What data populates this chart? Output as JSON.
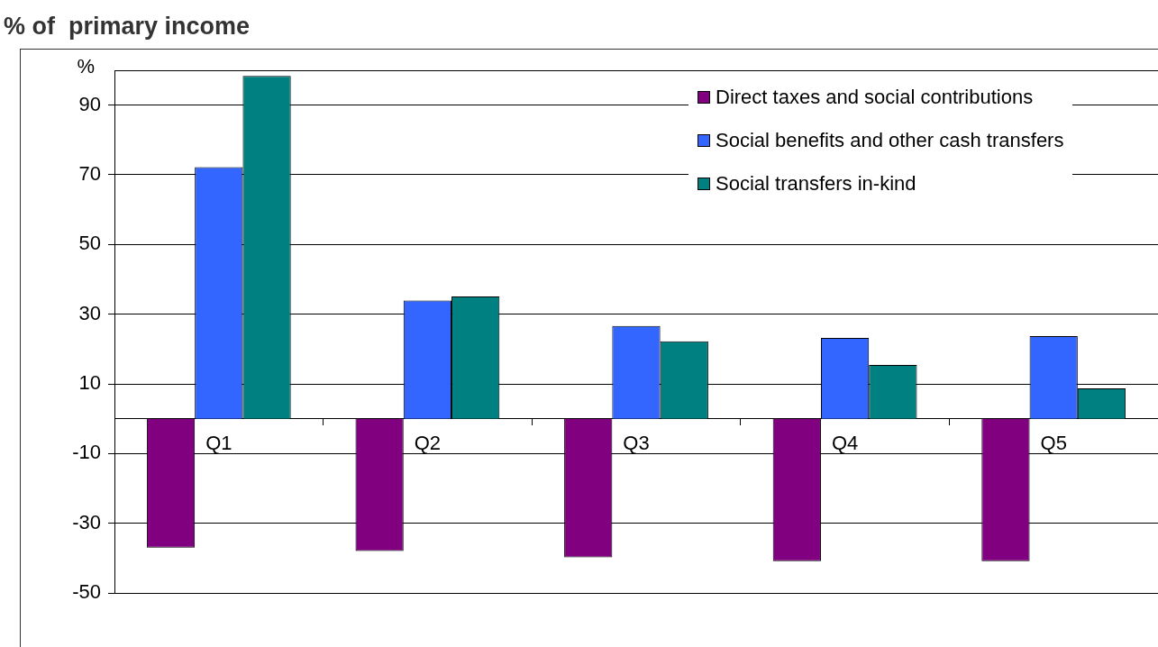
{
  "chart_data": {
    "type": "bar",
    "title": "% of  primary income",
    "ylabel": "%",
    "categories": [
      "Q1",
      "Q2",
      "Q3",
      "Q4",
      "Q5"
    ],
    "series": [
      {
        "name": "Direct taxes and social contributions",
        "color": "#800080",
        "values": [
          -37,
          -38,
          -39.8,
          -40.9,
          -40.9
        ]
      },
      {
        "name": "Social benefits and other cash transfers",
        "color": "#3366ff",
        "values": [
          72.2,
          33.9,
          26.6,
          23.2,
          23.7
        ]
      },
      {
        "name": "Social transfers in-kind",
        "color": "#008080",
        "values": [
          98.4,
          35.1,
          22.2,
          15.4,
          8.7
        ]
      }
    ],
    "ylim": [
      -50,
      100
    ],
    "yticks": [
      -50,
      -30,
      -10,
      10,
      30,
      50,
      70,
      90
    ],
    "grid": "y",
    "legend": "top right"
  }
}
